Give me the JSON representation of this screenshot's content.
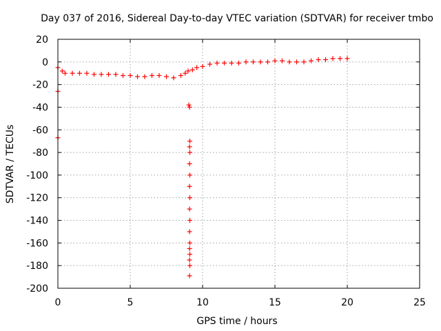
{
  "chart_data": {
    "type": "scatter",
    "title": "Day 037 of 2016, Sidereal Day-to-day VTEC variation (SDTVAR) for receiver tmbo",
    "xlabel": "GPS time / hours",
    "ylabel": "SDTVAR / TECUs",
    "xlim": [
      0,
      25
    ],
    "ylim": [
      -200,
      20
    ],
    "xticks": [
      0,
      5,
      10,
      15,
      20,
      25
    ],
    "yticks": [
      20,
      0,
      -20,
      -40,
      -60,
      -80,
      -100,
      -120,
      -140,
      -160,
      -180,
      -200
    ],
    "xtick_labels": [
      "0",
      "5",
      "10",
      "15",
      "20",
      "25"
    ],
    "ytick_labels": [
      "20",
      "0",
      "-20",
      "-40",
      "-60",
      "-80",
      "-100",
      "-120",
      "-140",
      "-160",
      "-180",
      "-200"
    ],
    "grid": true,
    "marker": "+",
    "color": "#ff0000",
    "series": [
      {
        "name": "SDTVAR",
        "x": [
          0.0,
          0.0,
          0.0,
          0.3,
          0.5,
          1.0,
          1.5,
          2.0,
          2.5,
          3.0,
          3.5,
          4.0,
          4.5,
          5.0,
          5.5,
          6.0,
          6.5,
          7.0,
          7.5,
          8.0,
          8.5,
          8.8,
          9.0,
          9.05,
          9.1,
          9.12,
          9.1,
          9.12,
          9.1,
          9.12,
          9.1,
          9.12,
          9.1,
          9.12,
          9.1,
          9.12,
          9.1,
          9.12,
          9.1,
          9.12,
          9.1,
          9.3,
          9.6,
          10.0,
          10.5,
          11.0,
          11.5,
          12.0,
          12.5,
          13.0,
          13.5,
          14.0,
          14.5,
          15.0,
          15.5,
          16.0,
          16.5,
          17.0,
          17.5,
          18.0,
          18.5,
          19.0,
          19.5,
          20.0
        ],
        "y": [
          -5,
          -26,
          -67,
          -8,
          -10,
          -10,
          -10,
          -10,
          -11,
          -11,
          -11,
          -11,
          -12,
          -12,
          -13,
          -13,
          -12,
          -12,
          -13,
          -14,
          -12,
          -10,
          -8,
          -38,
          -40,
          -70,
          -75,
          -80,
          -90,
          -100,
          -110,
          -120,
          -130,
          -140,
          -150,
          -160,
          -165,
          -170,
          -175,
          -180,
          -189,
          -7,
          -5,
          -4,
          -2,
          -1,
          -1,
          -1,
          -1,
          0,
          0,
          0,
          0,
          1,
          1,
          0,
          0,
          0,
          1,
          2,
          2,
          3,
          3,
          3
        ]
      }
    ]
  }
}
